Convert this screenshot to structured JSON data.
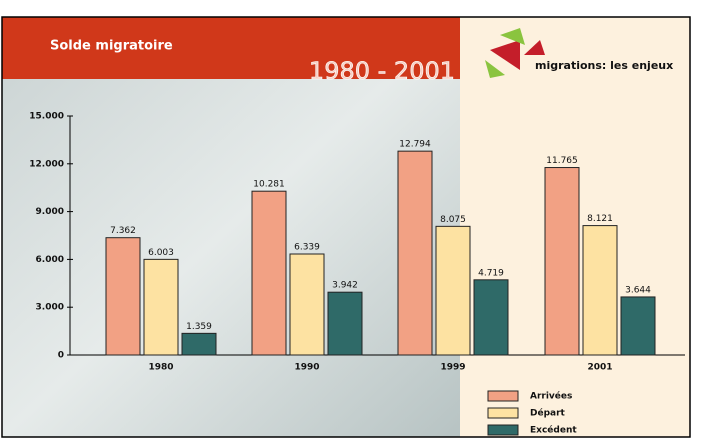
{
  "chart_data": {
    "type": "bar",
    "title": "Solde migratoire",
    "subtitle": "1980 - 2001",
    "logo_text": "migrations: les enjeux",
    "categories": [
      "1980",
      "1990",
      "1999",
      "2001"
    ],
    "series": [
      {
        "name": "Arrivées",
        "color": "#f2a184",
        "values": [
          7362,
          10281,
          12794,
          11765
        ],
        "value_labels": [
          "7.362",
          "10.281",
          "12.794",
          "11.765"
        ]
      },
      {
        "name": "Départ",
        "color": "#fde2a2",
        "values": [
          6003,
          6339,
          8075,
          8121
        ],
        "value_labels": [
          "6.003",
          "6.339",
          "8.075",
          "8.121"
        ]
      },
      {
        "name": "Excédent",
        "color": "#2f6a68",
        "values": [
          1359,
          3942,
          4719,
          3644
        ],
        "value_labels": [
          "1.359",
          "3.942",
          "4.719",
          "3.644"
        ]
      }
    ],
    "ylim": [
      0,
      15000
    ],
    "yticks": [
      0,
      {
        "value": 3000,
        "label": "3.000"
      },
      {
        "value": 6000,
        "label": "6.000"
      },
      {
        "value": 9000,
        "label": "9.000"
      },
      {
        "value": 12000,
        "label": "12.000"
      },
      {
        "value": 15000,
        "label": "15.000"
      }
    ],
    "grid": false,
    "legend": "bottom-right"
  }
}
